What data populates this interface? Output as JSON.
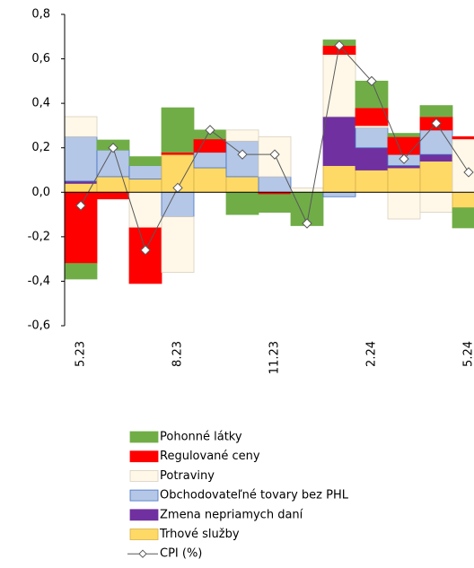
{
  "chart_data": {
    "type": "bar",
    "stacked": true,
    "categories": [
      "5.23",
      null,
      null,
      "8.23",
      null,
      null,
      "11.23",
      null,
      null,
      "2.24",
      null,
      null,
      "5.24"
    ],
    "ylim": [
      -0.6,
      0.8
    ],
    "yticks": [
      {
        "value": 0.8,
        "label": "0,8"
      },
      {
        "value": 0.6,
        "label": "0,6"
      },
      {
        "value": 0.4,
        "label": "0,4"
      },
      {
        "value": 0.2,
        "label": "0,2"
      },
      {
        "value": 0,
        "label": "0,0"
      },
      {
        "value": -0.2,
        "label": "-0,2"
      },
      {
        "value": -0.4,
        "label": "-0,4"
      },
      {
        "value": -0.6,
        "label": "-0,6"
      }
    ],
    "series": [
      {
        "name": "Pohonné látky",
        "color": "#70ad47",
        "values": [
          -0.07,
          0.045,
          0.04,
          0.2,
          0.04,
          -0.1,
          -0.08,
          -0.15,
          0.025,
          0.12,
          0.015,
          0.05,
          -0.09
        ]
      },
      {
        "name": "Regulované ceny",
        "color": "#ff0000",
        "values": [
          -0.32,
          -0.03,
          -0.25,
          0.01,
          0.06,
          0,
          -0.01,
          0,
          0.04,
          0.08,
          0.08,
          0.06,
          0.01
        ]
      },
      {
        "name": "Potraviny",
        "color": "#fff8e8",
        "values": [
          0.09,
          0,
          -0.16,
          -0.25,
          0,
          0.05,
          0.18,
          0.02,
          0.28,
          0.01,
          -0.12,
          -0.09,
          0.24
        ]
      },
      {
        "name": "Obchodovateľné tovary bez PHL",
        "color": "#b4c7e7",
        "values": [
          0.2,
          0.12,
          0.06,
          -0.11,
          0.07,
          0.16,
          0.07,
          0,
          -0.02,
          0.09,
          0.05,
          0.11,
          0
        ]
      },
      {
        "name": "Zmena nepriamych daní",
        "color": "#7030a0",
        "values": [
          0.01,
          0,
          0,
          0,
          0,
          0,
          0,
          0,
          0.22,
          0.1,
          0.01,
          0.03,
          0
        ]
      },
      {
        "name": "Trhové služby",
        "color": "#ffd966",
        "values": [
          0.04,
          0.07,
          0.06,
          0.17,
          0.11,
          0.07,
          0,
          0,
          0.12,
          0.1,
          0.11,
          0.14,
          -0.07
        ]
      },
      {
        "name": "CPI (%)",
        "type": "line",
        "color": "#595959",
        "values": [
          -0.06,
          0.2,
          -0.26,
          0.02,
          0.28,
          0.17,
          0.17,
          -0.14,
          0.66,
          0.5,
          0.15,
          0.31,
          0.09
        ]
      }
    ]
  }
}
